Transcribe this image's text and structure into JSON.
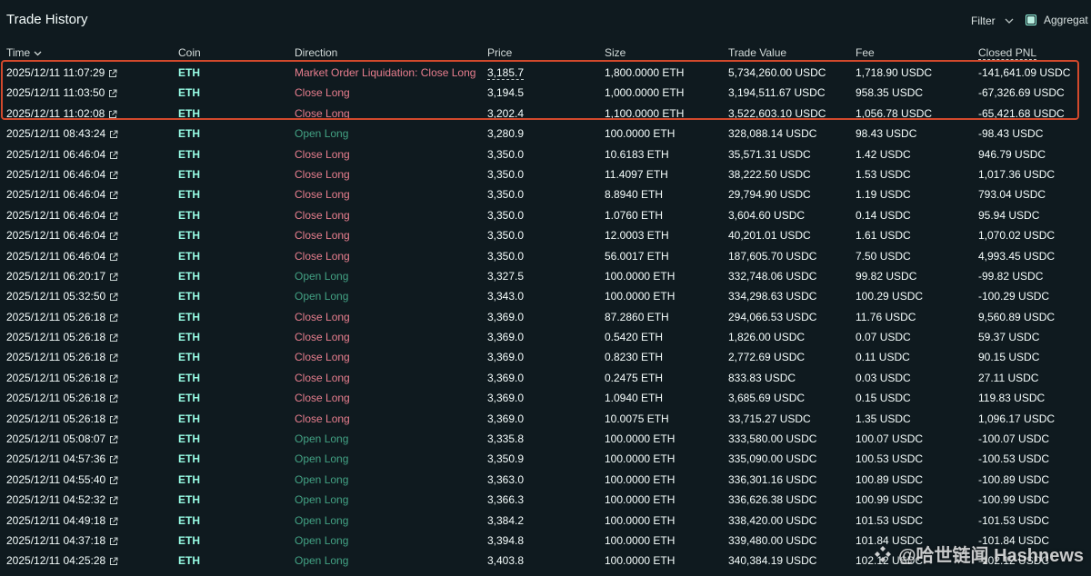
{
  "header": {
    "title": "Trade History",
    "filter_label": "Filter",
    "aggregate_label": "Aggregat"
  },
  "columns": {
    "time": "Time",
    "coin": "Coin",
    "direction": "Direction",
    "price": "Price",
    "size": "Size",
    "trade_value": "Trade Value",
    "fee": "Fee",
    "closed_pnl": "Closed PNL"
  },
  "icons": {
    "sort": "chevron-down-icon",
    "filter": "chevron-down-icon",
    "link": "external-link-icon",
    "watermark": "diamond-logo-icon"
  },
  "colors": {
    "background": "#0f1a1f",
    "coin": "#97fce4",
    "open_long": "#43a284",
    "close_long": "#e87e8e",
    "highlight_border": "#d2492c"
  },
  "rows": [
    {
      "time": "2025/12/11 11:07:29",
      "coin": "ETH",
      "direction": "Market Order Liquidation: Close Long",
      "type": "close",
      "price": "3,185.7",
      "size": "1,800.0000 ETH",
      "value": "5,734,260.00 USDC",
      "fee": "1,718.90 USDC",
      "pnl": "-141,641.09 USDC"
    },
    {
      "time": "2025/12/11 11:03:50",
      "coin": "ETH",
      "direction": "Close Long",
      "type": "close",
      "price": "3,194.5",
      "size": "1,000.0000 ETH",
      "value": "3,194,511.67 USDC",
      "fee": "958.35 USDC",
      "pnl": "-67,326.69 USDC"
    },
    {
      "time": "2025/12/11 11:02:08",
      "coin": "ETH",
      "direction": "Close Long",
      "type": "close",
      "price": "3,202.4",
      "size": "1,100.0000 ETH",
      "value": "3,522,603.10 USDC",
      "fee": "1,056.78 USDC",
      "pnl": "-65,421.68 USDC"
    },
    {
      "time": "2025/12/11 08:43:24",
      "coin": "ETH",
      "direction": "Open Long",
      "type": "open",
      "price": "3,280.9",
      "size": "100.0000 ETH",
      "value": "328,088.14 USDC",
      "fee": "98.43 USDC",
      "pnl": "-98.43 USDC"
    },
    {
      "time": "2025/12/11 06:46:04",
      "coin": "ETH",
      "direction": "Close Long",
      "type": "close",
      "price": "3,350.0",
      "size": "10.6183 ETH",
      "value": "35,571.31 USDC",
      "fee": "1.42 USDC",
      "pnl": "946.79 USDC"
    },
    {
      "time": "2025/12/11 06:46:04",
      "coin": "ETH",
      "direction": "Close Long",
      "type": "close",
      "price": "3,350.0",
      "size": "11.4097 ETH",
      "value": "38,222.50 USDC",
      "fee": "1.53 USDC",
      "pnl": "1,017.36 USDC"
    },
    {
      "time": "2025/12/11 06:46:04",
      "coin": "ETH",
      "direction": "Close Long",
      "type": "close",
      "price": "3,350.0",
      "size": "8.8940 ETH",
      "value": "29,794.90 USDC",
      "fee": "1.19 USDC",
      "pnl": "793.04 USDC"
    },
    {
      "time": "2025/12/11 06:46:04",
      "coin": "ETH",
      "direction": "Close Long",
      "type": "close",
      "price": "3,350.0",
      "size": "1.0760 ETH",
      "value": "3,604.60 USDC",
      "fee": "0.14 USDC",
      "pnl": "95.94 USDC"
    },
    {
      "time": "2025/12/11 06:46:04",
      "coin": "ETH",
      "direction": "Close Long",
      "type": "close",
      "price": "3,350.0",
      "size": "12.0003 ETH",
      "value": "40,201.01 USDC",
      "fee": "1.61 USDC",
      "pnl": "1,070.02 USDC"
    },
    {
      "time": "2025/12/11 06:46:04",
      "coin": "ETH",
      "direction": "Close Long",
      "type": "close",
      "price": "3,350.0",
      "size": "56.0017 ETH",
      "value": "187,605.70 USDC",
      "fee": "7.50 USDC",
      "pnl": "4,993.45 USDC"
    },
    {
      "time": "2025/12/11 06:20:17",
      "coin": "ETH",
      "direction": "Open Long",
      "type": "open",
      "price": "3,327.5",
      "size": "100.0000 ETH",
      "value": "332,748.06 USDC",
      "fee": "99.82 USDC",
      "pnl": "-99.82 USDC"
    },
    {
      "time": "2025/12/11 05:32:50",
      "coin": "ETH",
      "direction": "Open Long",
      "type": "open",
      "price": "3,343.0",
      "size": "100.0000 ETH",
      "value": "334,298.63 USDC",
      "fee": "100.29 USDC",
      "pnl": "-100.29 USDC"
    },
    {
      "time": "2025/12/11 05:26:18",
      "coin": "ETH",
      "direction": "Close Long",
      "type": "close",
      "price": "3,369.0",
      "size": "87.2860 ETH",
      "value": "294,066.53 USDC",
      "fee": "11.76 USDC",
      "pnl": "9,560.89 USDC"
    },
    {
      "time": "2025/12/11 05:26:18",
      "coin": "ETH",
      "direction": "Close Long",
      "type": "close",
      "price": "3,369.0",
      "size": "0.5420 ETH",
      "value": "1,826.00 USDC",
      "fee": "0.07 USDC",
      "pnl": "59.37 USDC"
    },
    {
      "time": "2025/12/11 05:26:18",
      "coin": "ETH",
      "direction": "Close Long",
      "type": "close",
      "price": "3,369.0",
      "size": "0.8230 ETH",
      "value": "2,772.69 USDC",
      "fee": "0.11 USDC",
      "pnl": "90.15 USDC"
    },
    {
      "time": "2025/12/11 05:26:18",
      "coin": "ETH",
      "direction": "Close Long",
      "type": "close",
      "price": "3,369.0",
      "size": "0.2475 ETH",
      "value": "833.83 USDC",
      "fee": "0.03 USDC",
      "pnl": "27.11 USDC"
    },
    {
      "time": "2025/12/11 05:26:18",
      "coin": "ETH",
      "direction": "Close Long",
      "type": "close",
      "price": "3,369.0",
      "size": "1.0940 ETH",
      "value": "3,685.69 USDC",
      "fee": "0.15 USDC",
      "pnl": "119.83 USDC"
    },
    {
      "time": "2025/12/11 05:26:18",
      "coin": "ETH",
      "direction": "Close Long",
      "type": "close",
      "price": "3,369.0",
      "size": "10.0075 ETH",
      "value": "33,715.27 USDC",
      "fee": "1.35 USDC",
      "pnl": "1,096.17 USDC"
    },
    {
      "time": "2025/12/11 05:08:07",
      "coin": "ETH",
      "direction": "Open Long",
      "type": "open",
      "price": "3,335.8",
      "size": "100.0000 ETH",
      "value": "333,580.00 USDC",
      "fee": "100.07 USDC",
      "pnl": "-100.07 USDC"
    },
    {
      "time": "2025/12/11 04:57:36",
      "coin": "ETH",
      "direction": "Open Long",
      "type": "open",
      "price": "3,350.9",
      "size": "100.0000 ETH",
      "value": "335,090.00 USDC",
      "fee": "100.53 USDC",
      "pnl": "-100.53 USDC"
    },
    {
      "time": "2025/12/11 04:55:40",
      "coin": "ETH",
      "direction": "Open Long",
      "type": "open",
      "price": "3,363.0",
      "size": "100.0000 ETH",
      "value": "336,301.16 USDC",
      "fee": "100.89 USDC",
      "pnl": "-100.89 USDC"
    },
    {
      "time": "2025/12/11 04:52:32",
      "coin": "ETH",
      "direction": "Open Long",
      "type": "open",
      "price": "3,366.3",
      "size": "100.0000 ETH",
      "value": "336,626.38 USDC",
      "fee": "100.99 USDC",
      "pnl": "-100.99 USDC"
    },
    {
      "time": "2025/12/11 04:49:18",
      "coin": "ETH",
      "direction": "Open Long",
      "type": "open",
      "price": "3,384.2",
      "size": "100.0000 ETH",
      "value": "338,420.00 USDC",
      "fee": "101.53 USDC",
      "pnl": "-101.53 USDC"
    },
    {
      "time": "2025/12/11 04:37:18",
      "coin": "ETH",
      "direction": "Open Long",
      "type": "open",
      "price": "3,394.8",
      "size": "100.0000 ETH",
      "value": "339,480.00 USDC",
      "fee": "101.84 USDC",
      "pnl": "-101.84 USDC"
    },
    {
      "time": "2025/12/11 04:25:28",
      "coin": "ETH",
      "direction": "Open Long",
      "type": "open",
      "price": "3,403.8",
      "size": "100.0000 ETH",
      "value": "340,384.19 USDC",
      "fee": "102.12 USDC",
      "pnl": "-102.12 USDC"
    }
  ],
  "watermark": {
    "text": "@哈世链闻 Hashnews"
  }
}
